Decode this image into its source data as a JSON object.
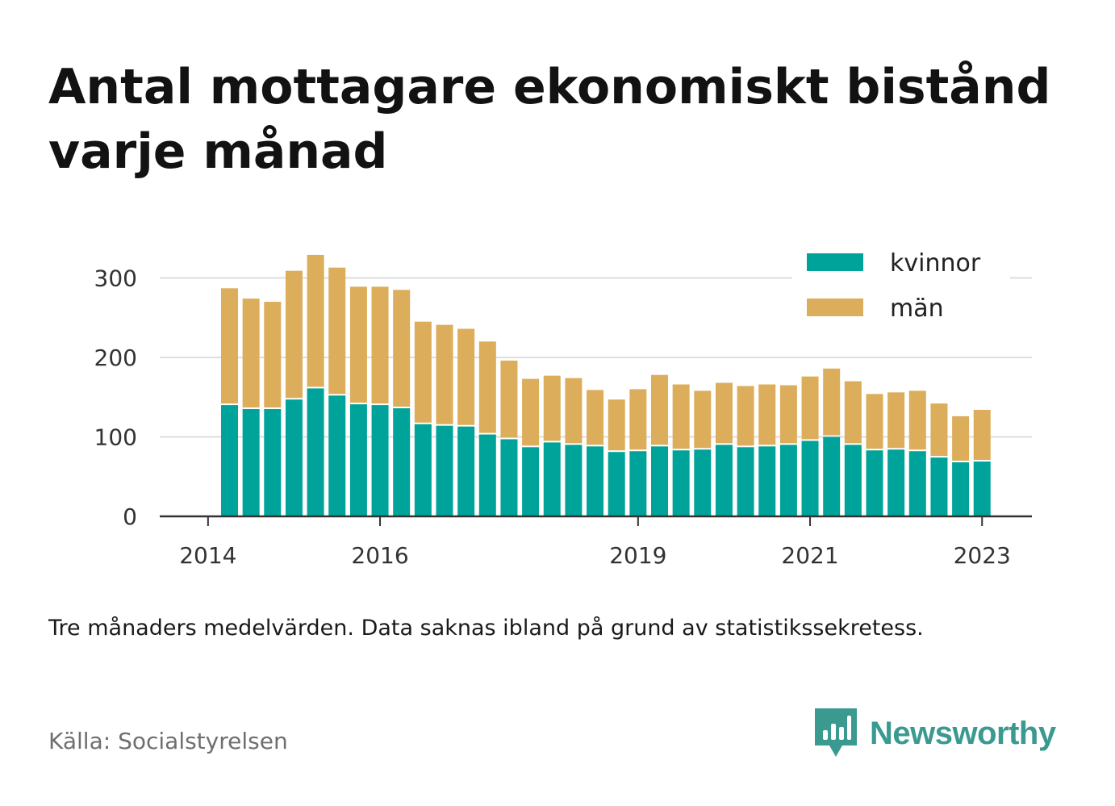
{
  "title": "Antal mottagare ekonomiskt bistånd varje månad",
  "note": "Tre månaders medelvärden. Data saknas ibland på grund av statistikssekretess.",
  "source": "Källa: Socialstyrelsen",
  "brand": {
    "name": "Newsworthy",
    "icon": "bar-chart-speech-bubble-icon",
    "color": "#3a9a90"
  },
  "chart_data": {
    "type": "bar",
    "stacked": true,
    "ylim": [
      0,
      330
    ],
    "yticks": [
      0,
      100,
      200,
      300
    ],
    "ytick_labels": [
      "0",
      "100",
      "200",
      "300"
    ],
    "xtick_labels": [
      "2014",
      "2016",
      "2019",
      "2021",
      "2023"
    ],
    "grid": true,
    "legend_position": "top-right",
    "categories": [
      "2014 Q2",
      "2014 Q3",
      "2014 Q4",
      "2015 Q1",
      "2015 Q2",
      "2015 Q3",
      "2015 Q4",
      "2016 Q1",
      "2016 Q2",
      "2016 Q3",
      "2016 Q4",
      "2017 Q1",
      "2017 Q2",
      "2017 Q3",
      "2017 Q4",
      "2018 Q1",
      "2018 Q2",
      "2018 Q3",
      "2018 Q4",
      "2019 Q1",
      "2019 Q2",
      "2019 Q3",
      "2019 Q4",
      "2020 Q1",
      "2020 Q2",
      "2020 Q3",
      "2020 Q4",
      "2021 Q1",
      "2021 Q2",
      "2021 Q3",
      "2021 Q4",
      "2022 Q1",
      "2022 Q2",
      "2022 Q3",
      "2022 Q4",
      "2023 Q1"
    ],
    "series": [
      {
        "name": "kvinnor",
        "color": "#00a39a",
        "values": [
          140,
          135,
          135,
          147,
          161,
          152,
          141,
          140,
          136,
          116,
          114,
          113,
          103,
          97,
          87,
          93,
          90,
          88,
          81,
          82,
          88,
          83,
          84,
          90,
          87,
          88,
          90,
          95,
          100,
          90,
          83,
          84,
          82,
          74,
          68,
          69
        ]
      },
      {
        "name": "män",
        "color": "#dcad5a",
        "values": [
          147,
          139,
          135,
          162,
          168,
          161,
          148,
          149,
          149,
          129,
          127,
          123,
          117,
          99,
          86,
          84,
          84,
          71,
          66,
          78,
          90,
          83,
          74,
          78,
          77,
          78,
          75,
          81,
          86,
          80,
          71,
          72,
          76,
          68,
          58,
          65
        ]
      }
    ]
  }
}
